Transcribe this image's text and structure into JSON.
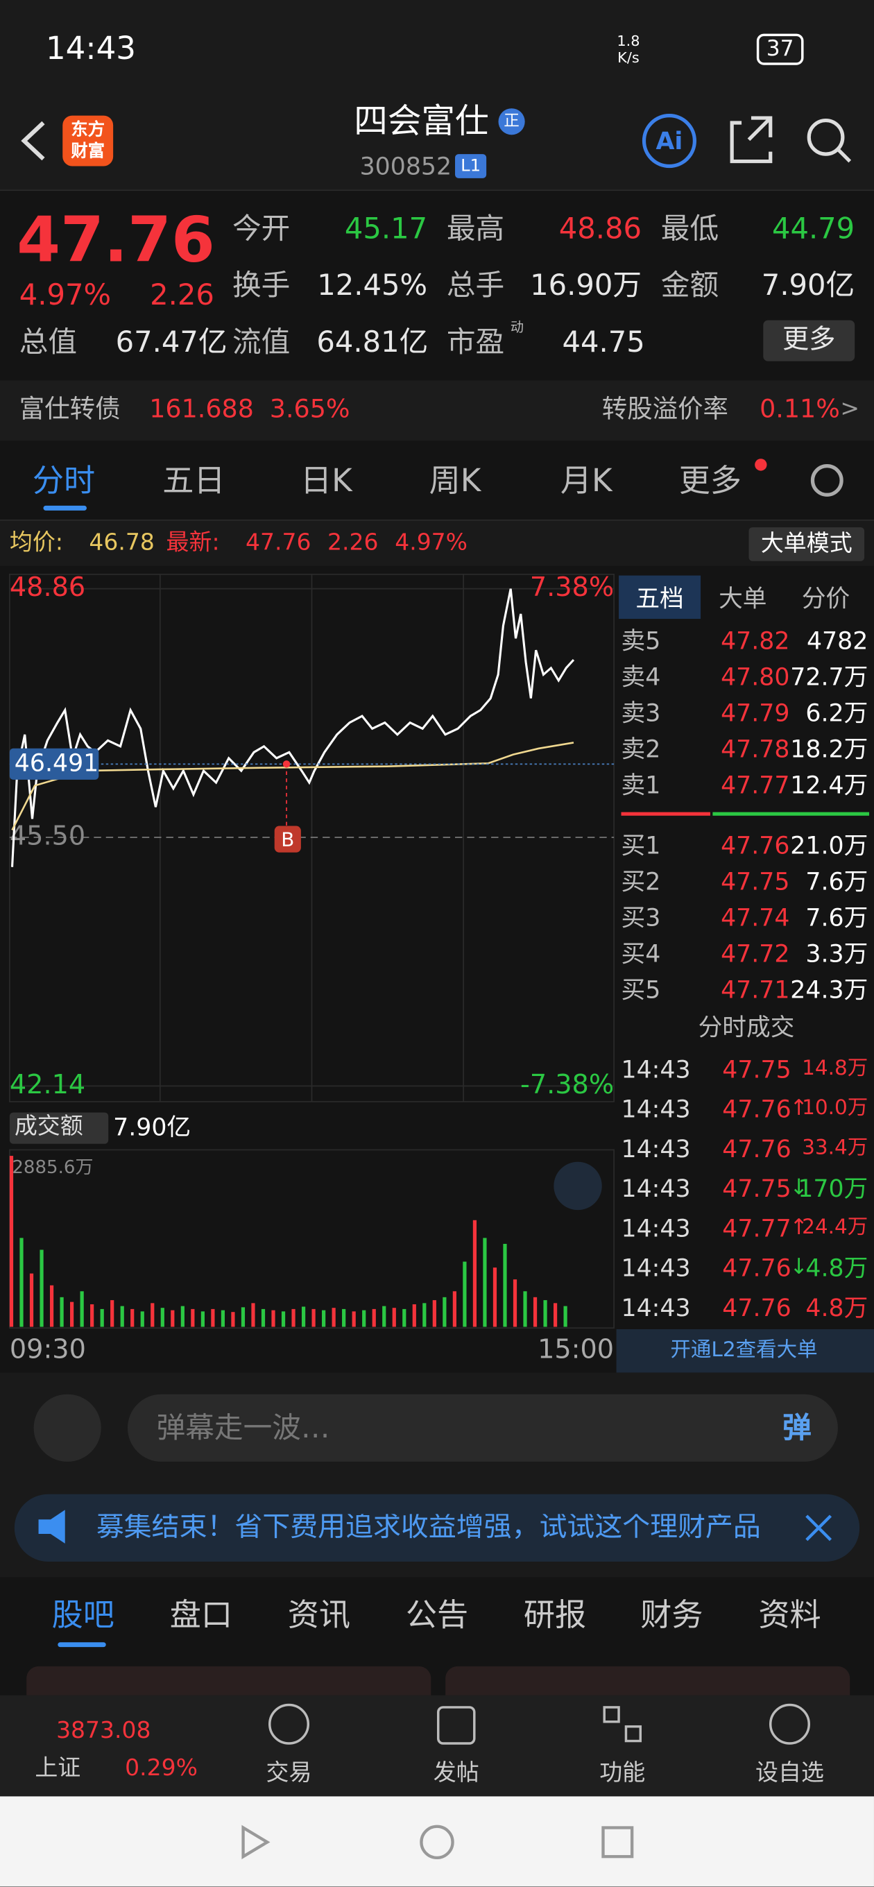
{
  "status": {
    "time": "14:43",
    "speed": "1.8",
    "speed_unit": "K/s",
    "battery": "37"
  },
  "header": {
    "logo": [
      "东方",
      "财富"
    ],
    "name": "四会富仕",
    "badge": "正",
    "code": "300852",
    "level": "L1",
    "ai": "Ai"
  },
  "quote": {
    "price": "47.76",
    "pct": "4.97%",
    "change": "2.26",
    "fields": [
      {
        "label": "今开",
        "value": "45.17"
      },
      {
        "label": "最高",
        "value": "48.86"
      },
      {
        "label": "最低",
        "value": "44.79"
      },
      {
        "label": "换手",
        "value": "12.45%"
      },
      {
        "label": "总手",
        "value": "16.90万"
      },
      {
        "label": "金额",
        "value": "7.90亿"
      },
      {
        "label": "总值",
        "value": "67.47亿"
      },
      {
        "label": "流值",
        "value": "64.81亿"
      },
      {
        "label": "市盈",
        "value": "44.75",
        "sup": "动"
      }
    ],
    "more": "更多"
  },
  "bond": {
    "name": "富仕转债",
    "price": "161.688",
    "pct": "3.65%",
    "premium_label": "转股溢价率",
    "premium": "0.11%",
    "arrow": ">"
  },
  "tabs": [
    "分时",
    "五日",
    "日K",
    "周K",
    "月K",
    "更多"
  ],
  "info": {
    "avg_label": "均价:",
    "avg": "46.78",
    "last_label": "最新:",
    "last": "47.76",
    "change": "2.26",
    "pct": "4.97%",
    "mode": "大单模式"
  },
  "chart_data": {
    "type": "line",
    "ylim": [
      42.14,
      48.86
    ],
    "yticks": [
      48.86,
      {
        "value": 45.5,
        "label": "45.50"
      },
      42.14
    ],
    "pct_labels": [
      "7.38%",
      "-7.38%"
    ],
    "xlim": [
      0,
      240
    ],
    "xticks": [
      {
        "value": 0,
        "label": "09:30"
      },
      {
        "value": 240,
        "label": "15:00"
      }
    ],
    "crosshair": 46.491,
    "marker": "B",
    "series": [
      {
        "color": "#ffffff",
        "x": [
          1,
          3,
          6,
          9,
          11,
          15,
          19,
          22,
          25,
          28,
          31,
          34,
          39,
          44,
          48,
          52,
          55,
          58,
          61,
          65,
          69,
          73,
          77,
          82,
          87,
          92,
          97,
          101,
          106,
          111,
          116,
          119,
          121,
          125,
          130,
          135,
          140,
          144,
          149,
          154,
          159,
          164,
          168,
          173,
          178,
          183,
          187,
          191,
          194,
          196,
          199,
          201,
          203,
          205,
          207,
          209,
          212,
          215,
          218,
          221,
          224
        ],
        "values": [
          45.1,
          46.4,
          46.89,
          45.75,
          46.4,
          46.81,
          47.05,
          47.22,
          46.57,
          46.89,
          46.73,
          46.65,
          46.81,
          46.73,
          47.22,
          46.97,
          46.4,
          45.91,
          46.4,
          46.16,
          46.4,
          46.08,
          46.4,
          46.24,
          46.57,
          46.4,
          46.65,
          46.73,
          46.57,
          46.65,
          46.4,
          46.24,
          46.4,
          46.65,
          46.89,
          47.05,
          47.14,
          46.97,
          47.05,
          46.89,
          47.05,
          46.97,
          47.14,
          46.89,
          46.97,
          47.14,
          47.22,
          47.38,
          47.7,
          48.36,
          48.86,
          48.19,
          48.52,
          47.87,
          47.38,
          48.03,
          47.7,
          47.79,
          47.62,
          47.79,
          47.9
        ]
      },
      {
        "color": "#f0d890",
        "x": [
          1,
          10,
          30,
          60,
          100,
          150,
          190,
          200,
          210,
          224
        ],
        "values": [
          45.6,
          46.2,
          46.4,
          46.42,
          46.44,
          46.46,
          46.5,
          46.62,
          46.7,
          46.78
        ]
      }
    ]
  },
  "volume": {
    "label": "成交额",
    "total": "7.90亿",
    "max_label": "2885.6万",
    "ylim": [
      0,
      2885.6
    ],
    "series": [
      {
        "color": "#f5333b",
        "x": [
          0,
          8,
          16,
          24,
          32,
          40,
          48,
          56,
          64,
          72,
          80,
          88,
          96,
          104,
          112,
          120,
          128,
          136,
          144,
          152,
          160,
          168,
          176,
          184,
          192,
          200,
          208,
          216
        ],
        "values": [
          2885.6,
          900,
          700,
          420,
          380,
          450,
          300,
          400,
          280,
          300,
          300,
          250,
          400,
          280,
          300,
          300,
          320,
          260,
          300,
          320,
          380,
          450,
          600,
          1800,
          1000,
          800,
          500,
          400
        ]
      },
      {
        "color": "#2bc843",
        "x": [
          4,
          12,
          20,
          28,
          36,
          44,
          52,
          60,
          68,
          76,
          84,
          92,
          100,
          108,
          116,
          124,
          132,
          140,
          148,
          156,
          164,
          172,
          180,
          188,
          196,
          204,
          212,
          220
        ],
        "values": [
          1500,
          1300,
          500,
          600,
          300,
          350,
          260,
          320,
          350,
          260,
          280,
          330,
          300,
          260,
          340,
          280,
          300,
          280,
          350,
          300,
          400,
          500,
          1100,
          1500,
          1400,
          600,
          450,
          350
        ]
      }
    ]
  },
  "book": {
    "tabs": [
      "五档",
      "大单",
      "分价"
    ],
    "asks": [
      {
        "label": "卖5",
        "price": "47.82",
        "vol": "4782"
      },
      {
        "label": "卖4",
        "price": "47.80",
        "vol": "72.7万"
      },
      {
        "label": "卖3",
        "price": "47.79",
        "vol": "6.2万"
      },
      {
        "label": "卖2",
        "price": "47.78",
        "vol": "18.2万"
      },
      {
        "label": "卖1",
        "price": "47.77",
        "vol": "12.4万"
      }
    ],
    "bids": [
      {
        "label": "买1",
        "price": "47.76",
        "vol": "21.0万"
      },
      {
        "label": "买2",
        "price": "47.75",
        "vol": "7.6万"
      },
      {
        "label": "买3",
        "price": "47.74",
        "vol": "7.6万"
      },
      {
        "label": "买4",
        "price": "47.72",
        "vol": "3.3万"
      },
      {
        "label": "买5",
        "price": "47.71",
        "vol": "24.3万"
      }
    ],
    "trades_title": "分时成交",
    "trades": [
      {
        "time": "14:43",
        "price": "47.75",
        "vol": "14.8万",
        "color": "#f5333b"
      },
      {
        "time": "14:43",
        "price": "47.76",
        "arrow": "↑",
        "vol": "10.0万",
        "color": "#f5333b"
      },
      {
        "time": "14:43",
        "price": "47.76",
        "vol": "33.4万",
        "color": "#f5333b"
      },
      {
        "time": "14:43",
        "price": "47.75",
        "arrow": "↓",
        "vol": "170万",
        "color": "#2bc843"
      },
      {
        "time": "14:43",
        "price": "47.77",
        "arrow": "↑",
        "vol": "24.4万",
        "color": "#f5333b"
      },
      {
        "time": "14:43",
        "price": "47.76",
        "arrow": "↓",
        "vol": "4.8万",
        "color": "#2bc843"
      },
      {
        "time": "14:43",
        "price": "47.76",
        "vol": "4.8万",
        "color": "#f5333b"
      }
    ],
    "l2": "开通L2查看大单"
  },
  "comment": {
    "placeholder": "弹幕走一波…",
    "button": "弹"
  },
  "banner": "募集结束！省下费用追求收益增强，试试这个理财产品",
  "sections": [
    "股吧",
    "盘口",
    "资讯",
    "公告",
    "研报",
    "财务",
    "资料"
  ],
  "nav": {
    "index_value": "3873.08",
    "index_name": "上证",
    "index_pct": "0.29%",
    "items": [
      "交易",
      "发帖",
      "功能",
      "设自选"
    ]
  }
}
